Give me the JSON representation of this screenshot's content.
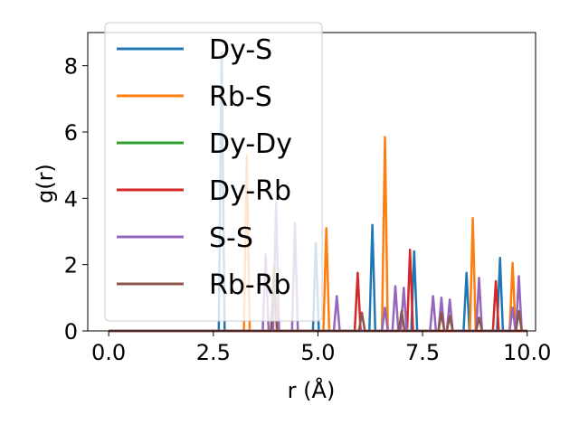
{
  "chart_data": {
    "type": "line",
    "xlabel": "r (Å)",
    "ylabel": "g(r)",
    "xlim": [
      -0.5,
      10.2
    ],
    "ylim": [
      0,
      9
    ],
    "xticks": [
      0.0,
      2.5,
      5.0,
      7.5,
      10.0
    ],
    "xtick_labels": [
      "0.0",
      "2.5",
      "5.0",
      "7.5",
      "10.0"
    ],
    "yticks": [
      0,
      2,
      4,
      6,
      8
    ],
    "ytick_labels": [
      "0",
      "2",
      "4",
      "6",
      "8"
    ],
    "grid": false,
    "legend_position": "upper-left",
    "series": [
      {
        "name": "Dy-S",
        "color": "#1f77b4",
        "peaks": [
          [
            2.7,
            8.4
          ],
          [
            4.95,
            2.65
          ],
          [
            6.3,
            3.2
          ],
          [
            7.3,
            2.4
          ],
          [
            8.55,
            1.75
          ],
          [
            9.35,
            2.2
          ]
        ]
      },
      {
        "name": "Rb-S",
        "color": "#ff7f0e",
        "peaks": [
          [
            3.3,
            5.3
          ],
          [
            5.2,
            3.1
          ],
          [
            6.6,
            5.85
          ],
          [
            8.7,
            3.4
          ],
          [
            9.65,
            2.05
          ]
        ]
      },
      {
        "name": "Dy-Dy",
        "color": "#2ca02c",
        "peaks": []
      },
      {
        "name": "Dy-Rb",
        "color": "#d62728",
        "peaks": [
          [
            5.95,
            1.75
          ],
          [
            7.2,
            2.45
          ],
          [
            9.25,
            1.5
          ]
        ]
      },
      {
        "name": "S-S",
        "color": "#9467bd",
        "peaks": [
          [
            3.75,
            2.3
          ],
          [
            4.0,
            3.85
          ],
          [
            4.45,
            3.25
          ],
          [
            5.45,
            1.05
          ],
          [
            6.6,
            0.7
          ],
          [
            6.85,
            1.35
          ],
          [
            7.05,
            1.3
          ],
          [
            7.75,
            1.05
          ],
          [
            7.95,
            1.0
          ],
          [
            8.15,
            0.95
          ],
          [
            8.85,
            1.6
          ],
          [
            9.65,
            0.7
          ],
          [
            9.8,
            1.65
          ]
        ]
      },
      {
        "name": "Rb-Rb",
        "color": "#8c564b",
        "peaks": [
          [
            3.95,
            1.95
          ],
          [
            6.05,
            0.55
          ],
          [
            7.0,
            0.6
          ],
          [
            7.95,
            0.55
          ],
          [
            8.15,
            0.45
          ],
          [
            8.85,
            0.4
          ],
          [
            9.8,
            0.6
          ]
        ]
      }
    ]
  }
}
